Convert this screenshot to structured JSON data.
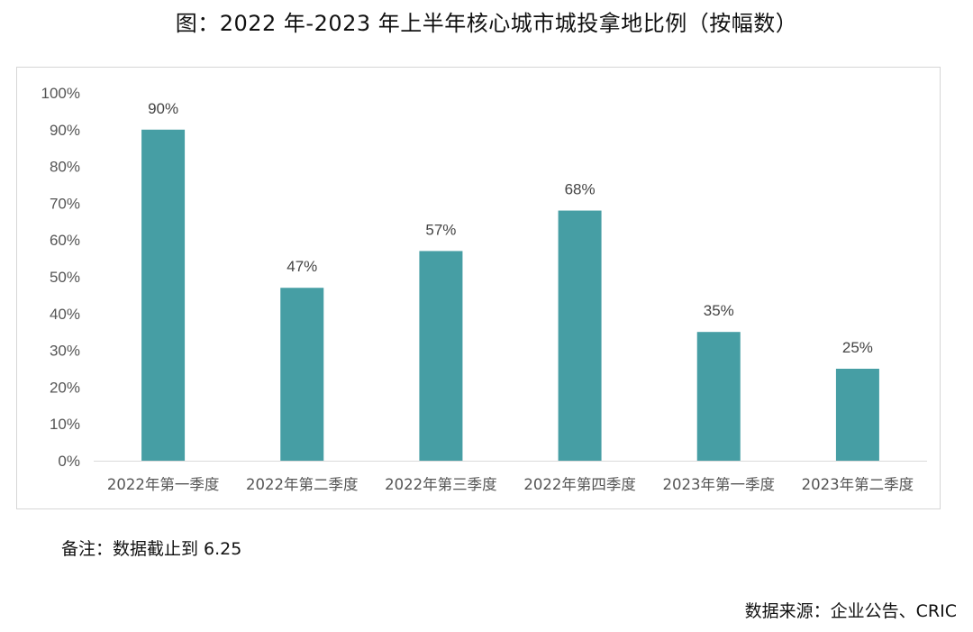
{
  "page": {
    "title": "图：2022 年-2023 年上半年核心城市城投拿地比例（按幅数）",
    "note": "备注：数据截止到 6.25",
    "source": "数据来源：企业公告、CRIC"
  },
  "chart_data": {
    "type": "bar",
    "title": "图：2022 年-2023 年上半年核心城市城投拿地比例（按幅数）",
    "xlabel": "",
    "ylabel": "",
    "categories": [
      "2022年第一季度",
      "2022年第二季度",
      "2022年第三季度",
      "2022年第四季度",
      "2023年第一季度",
      "2023年第二季度"
    ],
    "values": [
      90,
      47,
      57,
      68,
      35,
      25
    ],
    "data_labels": [
      "90%",
      "47%",
      "57%",
      "68%",
      "35%",
      "25%"
    ],
    "ylim": [
      0,
      100
    ],
    "ytick_values": [
      0,
      10,
      20,
      30,
      40,
      50,
      60,
      70,
      80,
      90,
      100
    ],
    "ytick_labels": [
      "0%",
      "10%",
      "20%",
      "30%",
      "40%",
      "50%",
      "60%",
      "70%",
      "80%",
      "90%",
      "100%"
    ],
    "grid": false,
    "legend": "none",
    "bar_color": "#469ea4",
    "axis_color": "#d9d9d9"
  }
}
